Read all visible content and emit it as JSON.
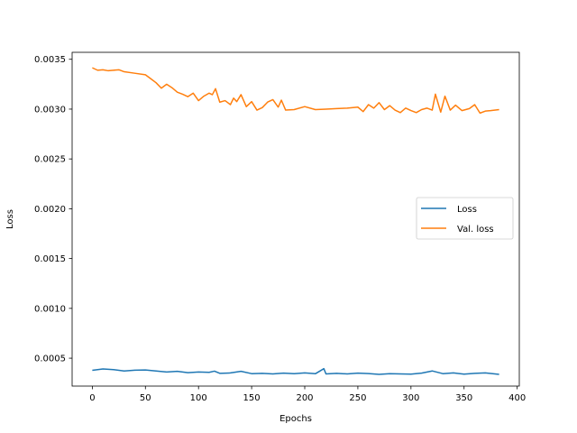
{
  "chart_data": {
    "type": "line",
    "title": "",
    "xlabel": "Epochs",
    "ylabel": "Loss",
    "xlim": [
      -19,
      402
    ],
    "ylim": [
      0.00022,
      0.00357
    ],
    "xticks": [
      0,
      50,
      100,
      150,
      200,
      250,
      300,
      350,
      400
    ],
    "yticks": [
      0.0005,
      0.001,
      0.0015,
      0.002,
      0.0025,
      0.003,
      0.0035
    ],
    "ytick_labels": [
      "0.0005",
      "0.0010",
      "0.0015",
      "0.0020",
      "0.0025",
      "0.0030",
      "0.0035"
    ],
    "legend_position": "center-right",
    "grid": false,
    "series": [
      {
        "name": "Loss",
        "color": "#1f77b4",
        "x": [
          0,
          10,
          20,
          30,
          40,
          50,
          60,
          70,
          80,
          90,
          100,
          110,
          115,
          120,
          130,
          140,
          150,
          160,
          170,
          180,
          190,
          200,
          210,
          218,
          220,
          230,
          240,
          250,
          260,
          270,
          280,
          290,
          300,
          310,
          320,
          330,
          340,
          350,
          360,
          370,
          383
        ],
        "y": [
          0.000378,
          0.000392,
          0.000385,
          0.000372,
          0.00038,
          0.000382,
          0.000372,
          0.000362,
          0.000368,
          0.000355,
          0.000362,
          0.000358,
          0.00037,
          0.000348,
          0.000352,
          0.000368,
          0.000345,
          0.000348,
          0.000342,
          0.00035,
          0.000345,
          0.000352,
          0.000344,
          0.000395,
          0.000342,
          0.000348,
          0.000342,
          0.00035,
          0.000346,
          0.000338,
          0.000345,
          0.000342,
          0.00034,
          0.00035,
          0.000372,
          0.000345,
          0.000352,
          0.00034,
          0.000348,
          0.000352,
          0.000338
        ]
      },
      {
        "name": "Val. loss",
        "color": "#ff7f0e",
        "x": [
          0,
          5,
          10,
          15,
          20,
          25,
          30,
          40,
          50,
          55,
          60,
          65,
          70,
          75,
          80,
          85,
          90,
          95,
          100,
          105,
          110,
          113,
          116,
          120,
          125,
          130,
          133,
          136,
          140,
          145,
          150,
          155,
          160,
          165,
          170,
          175,
          178,
          182,
          190,
          200,
          210,
          220,
          230,
          240,
          250,
          255,
          260,
          265,
          270,
          275,
          280,
          285,
          290,
          295,
          300,
          305,
          310,
          315,
          320,
          323,
          328,
          332,
          337,
          342,
          348,
          355,
          360,
          365,
          370,
          375,
          383
        ],
        "y": [
          0.003415,
          0.00339,
          0.003395,
          0.003385,
          0.00339,
          0.003395,
          0.003375,
          0.00336,
          0.003345,
          0.003305,
          0.003265,
          0.00321,
          0.00325,
          0.003215,
          0.00317,
          0.00315,
          0.003125,
          0.00316,
          0.003085,
          0.00313,
          0.00316,
          0.003145,
          0.003205,
          0.00307,
          0.003085,
          0.003045,
          0.00311,
          0.003075,
          0.003145,
          0.003025,
          0.003075,
          0.00299,
          0.003015,
          0.00307,
          0.003095,
          0.00302,
          0.00309,
          0.00299,
          0.002995,
          0.003025,
          0.002995,
          0.003,
          0.003005,
          0.00301,
          0.00302,
          0.002975,
          0.003045,
          0.00301,
          0.003065,
          0.002995,
          0.003035,
          0.00299,
          0.002965,
          0.00301,
          0.002985,
          0.002965,
          0.002995,
          0.00301,
          0.00299,
          0.00315,
          0.00297,
          0.00313,
          0.00299,
          0.00304,
          0.002985,
          0.003005,
          0.003045,
          0.00296,
          0.00298,
          0.002985,
          0.002995
        ]
      }
    ]
  }
}
